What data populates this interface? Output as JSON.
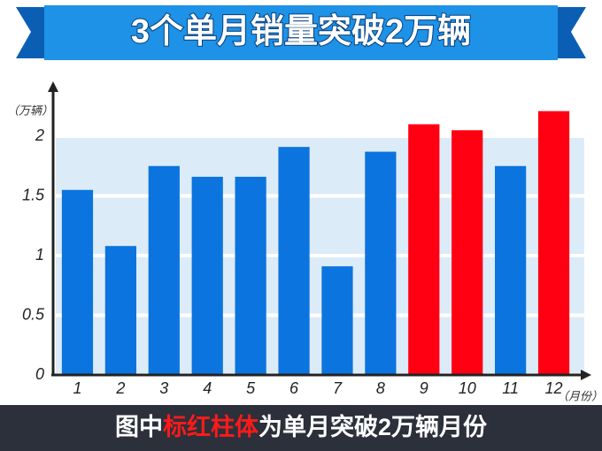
{
  "chart_data": {
    "type": "bar",
    "title": "3个单月销量突破2万辆",
    "y_label": "（万辆）",
    "x_label": "（月份）",
    "footnote": [
      "图中",
      "标红柱体",
      "为单月突破2万辆月份"
    ],
    "categories": [
      "1",
      "2",
      "3",
      "4",
      "5",
      "6",
      "7",
      "8",
      "9",
      "10",
      "11",
      "12"
    ],
    "values": [
      1.55,
      1.08,
      1.75,
      1.66,
      1.66,
      1.91,
      0.91,
      1.87,
      2.1,
      2.05,
      1.75,
      2.21
    ],
    "colors": [
      "#0b74de",
      "#0b74de",
      "#0b74de",
      "#0b74de",
      "#0b74de",
      "#0b74de",
      "#0b74de",
      "#0b74de",
      "#ff0013",
      "#ff0013",
      "#0b74de",
      "#ff0013"
    ],
    "ylim": [
      0,
      2.4
    ],
    "yticks": [
      0,
      0.5,
      1,
      1.5,
      2
    ],
    "grid": true
  }
}
